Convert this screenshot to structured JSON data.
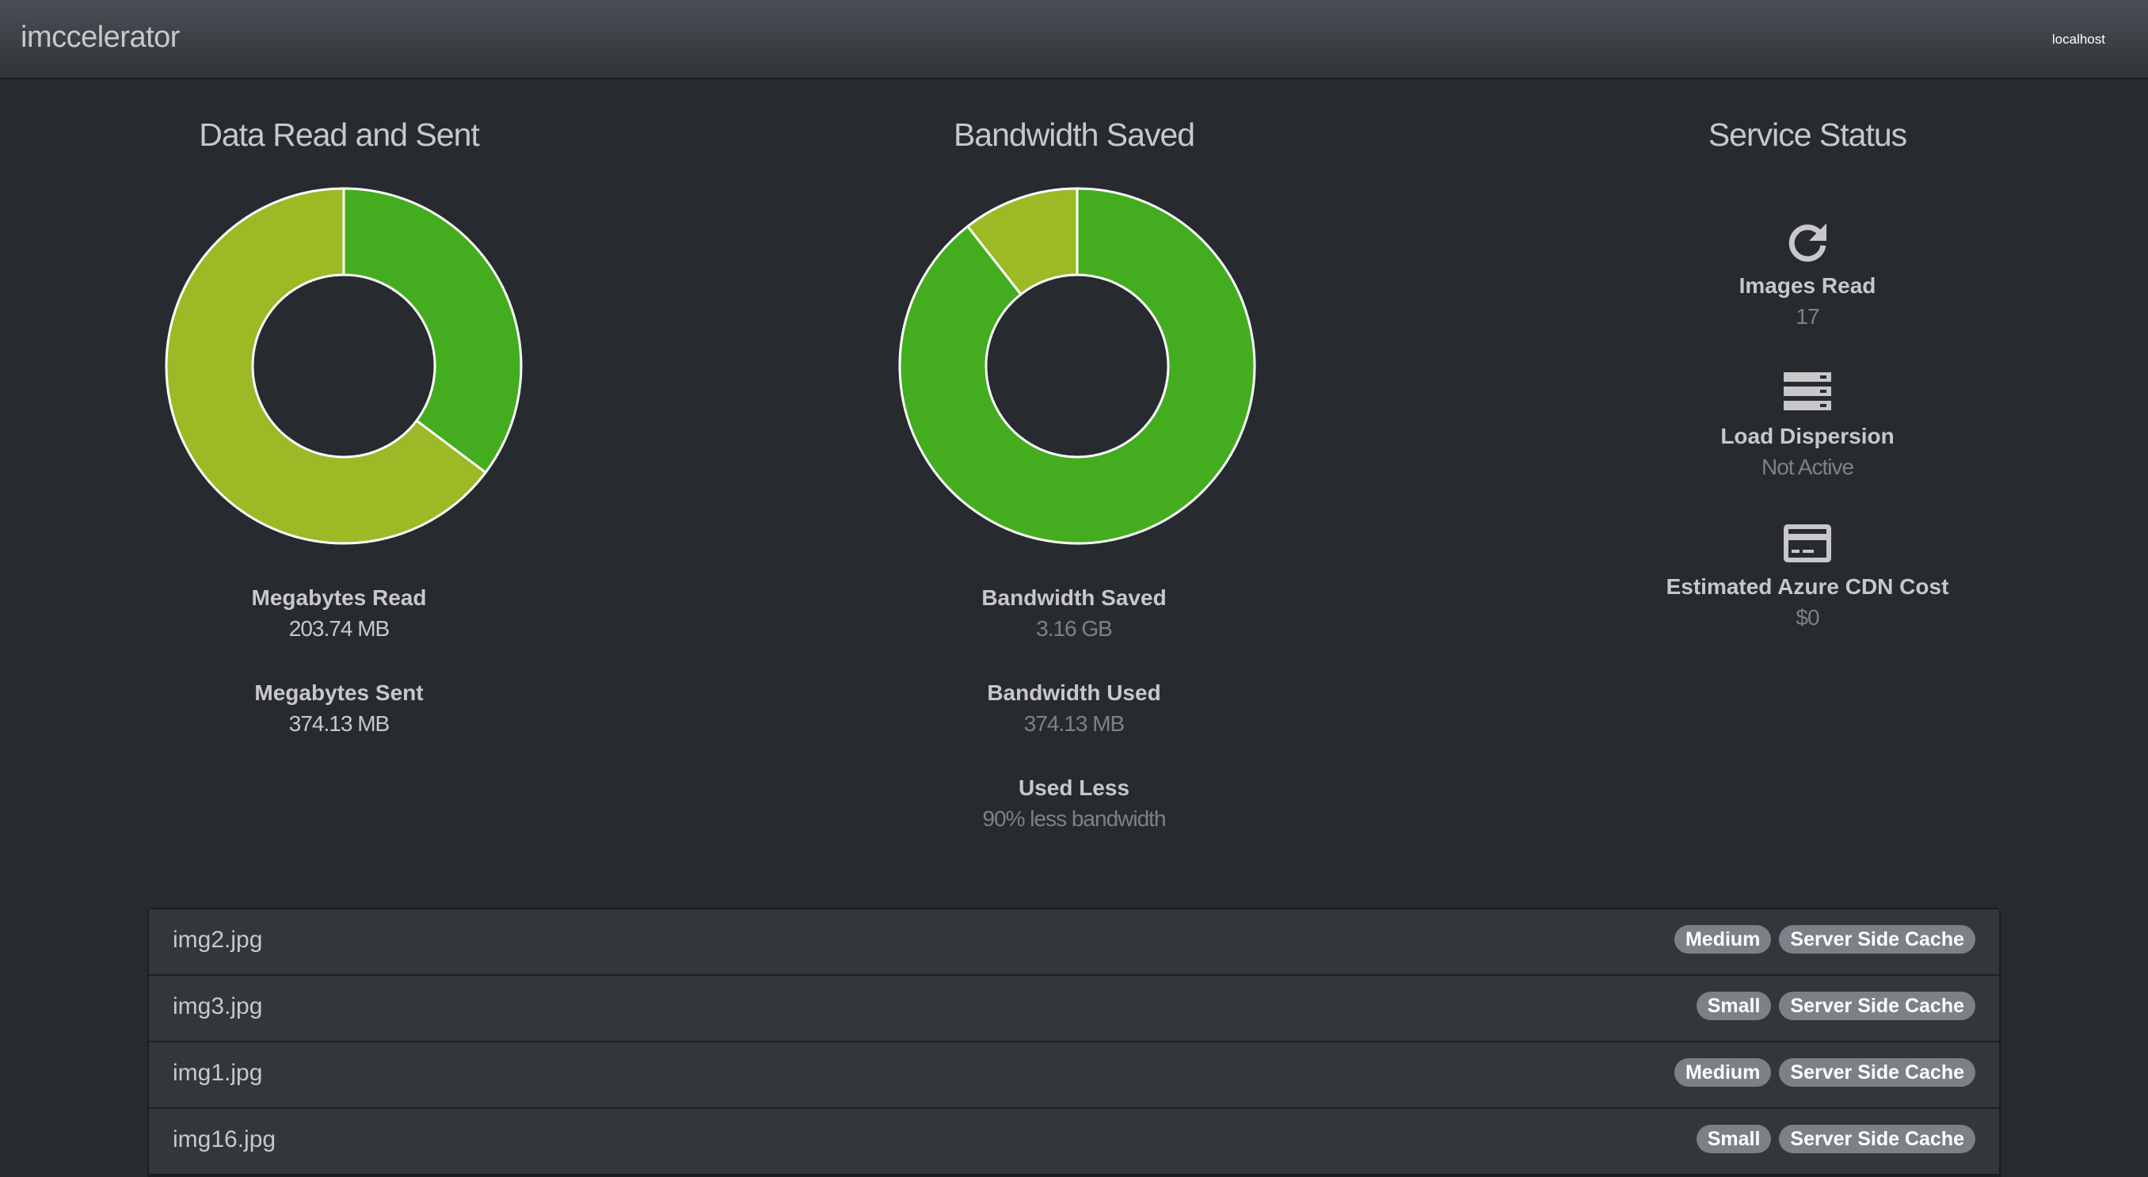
{
  "header": {
    "brand": "imccelerator",
    "host": "localhost"
  },
  "colors": {
    "dark_green": "#44ad1f",
    "light_green": "#9bba26",
    "background": "#272b30"
  },
  "chart_data": [
    {
      "type": "pie",
      "title": "Data Read and Sent",
      "categories": [
        "Megabytes Read",
        "Megabytes Sent"
      ],
      "values": [
        203.74,
        374.13
      ],
      "units": "MB"
    },
    {
      "type": "pie",
      "title": "Bandwidth Saved",
      "categories": [
        "Bandwidth Saved",
        "Bandwidth Used"
      ],
      "values": [
        3160,
        374.13
      ],
      "units": "MB"
    }
  ],
  "read_sent": {
    "title": "Data Read and Sent",
    "stats": [
      {
        "label": "Megabytes Read",
        "value": "203.74 MB"
      },
      {
        "label": "Megabytes Sent",
        "value": "374.13 MB"
      }
    ]
  },
  "bandwidth": {
    "title": "Bandwidth Saved",
    "stats": [
      {
        "label": "Bandwidth Saved",
        "value": "3.16 GB"
      },
      {
        "label": "Bandwidth Used",
        "value": "374.13 MB"
      },
      {
        "label": "Used Less",
        "value": "90% less bandwidth"
      }
    ]
  },
  "service": {
    "title": "Service Status",
    "items": [
      {
        "icon": "refresh-icon",
        "label": "Images Read",
        "value": "17"
      },
      {
        "icon": "server-icon",
        "label": "Load Dispersion",
        "value": "Not Active"
      },
      {
        "icon": "credit-card-icon",
        "label": "Estimated Azure CDN Cost",
        "value": "$0"
      }
    ]
  },
  "images": [
    {
      "name": "img2.jpg",
      "size": "Medium",
      "cache": "Server Side Cache"
    },
    {
      "name": "img3.jpg",
      "size": "Small",
      "cache": "Server Side Cache"
    },
    {
      "name": "img1.jpg",
      "size": "Medium",
      "cache": "Server Side Cache"
    },
    {
      "name": "img16.jpg",
      "size": "Small",
      "cache": "Server Side Cache"
    }
  ]
}
